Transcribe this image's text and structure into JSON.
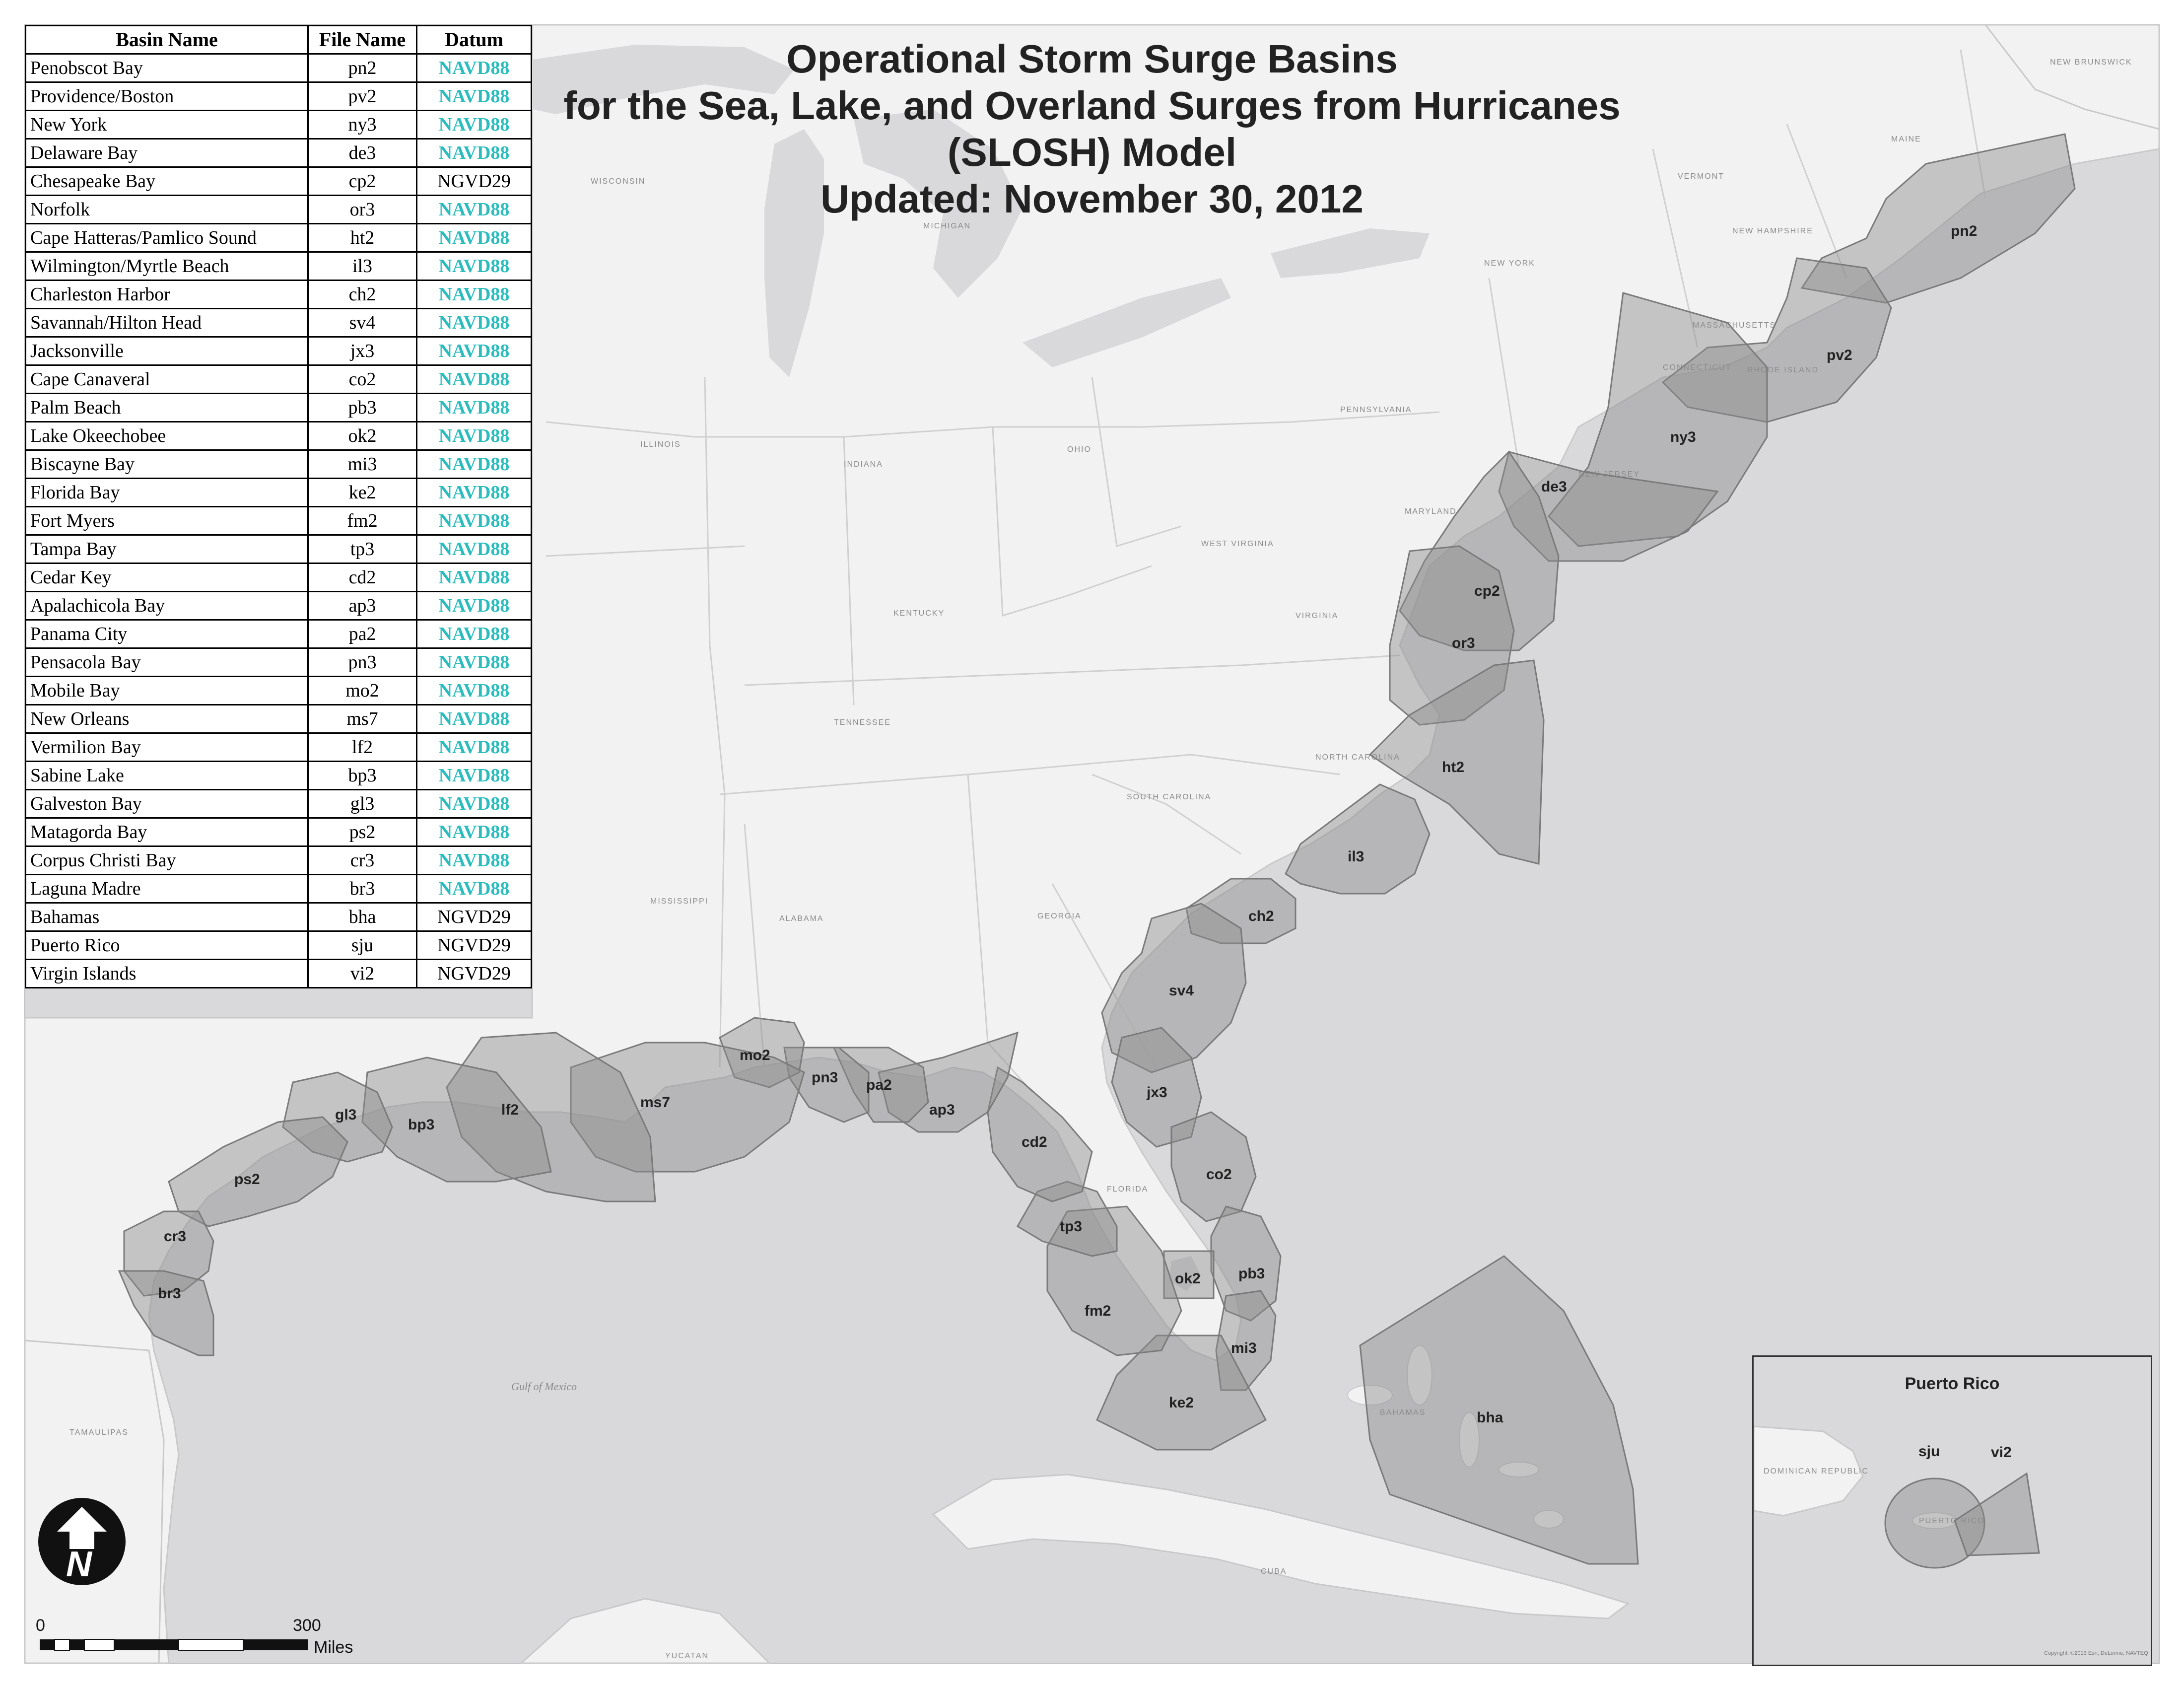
{
  "title": {
    "line1": "Operational Storm Surge Basins",
    "line2": "for the Sea, Lake, and Overland Surges from Hurricanes",
    "line3": "(SLOSH) Model",
    "line4": "Updated: November 30, 2012"
  },
  "legend": {
    "headers": [
      "Basin Name",
      "File Name",
      "Datum"
    ],
    "rows": [
      {
        "name": "Penobscot Bay",
        "file": "pn2",
        "datum": "NAVD88"
      },
      {
        "name": "Providence/Boston",
        "file": "pv2",
        "datum": "NAVD88"
      },
      {
        "name": "New York",
        "file": "ny3",
        "datum": "NAVD88"
      },
      {
        "name": "Delaware Bay",
        "file": "de3",
        "datum": "NAVD88"
      },
      {
        "name": "Chesapeake Bay",
        "file": "cp2",
        "datum": "NGVD29"
      },
      {
        "name": "Norfolk",
        "file": "or3",
        "datum": "NAVD88"
      },
      {
        "name": "Cape Hatteras/Pamlico Sound",
        "file": "ht2",
        "datum": "NAVD88"
      },
      {
        "name": "Wilmington/Myrtle Beach",
        "file": "il3",
        "datum": "NAVD88"
      },
      {
        "name": "Charleston Harbor",
        "file": "ch2",
        "datum": "NAVD88"
      },
      {
        "name": "Savannah/Hilton Head",
        "file": "sv4",
        "datum": "NAVD88"
      },
      {
        "name": "Jacksonville",
        "file": "jx3",
        "datum": "NAVD88"
      },
      {
        "name": "Cape Canaveral",
        "file": "co2",
        "datum": "NAVD88"
      },
      {
        "name": "Palm Beach",
        "file": "pb3",
        "datum": "NAVD88"
      },
      {
        "name": "Lake Okeechobee",
        "file": "ok2",
        "datum": "NAVD88"
      },
      {
        "name": "Biscayne Bay",
        "file": "mi3",
        "datum": "NAVD88"
      },
      {
        "name": "Florida Bay",
        "file": "ke2",
        "datum": "NAVD88"
      },
      {
        "name": "Fort Myers",
        "file": "fm2",
        "datum": "NAVD88"
      },
      {
        "name": "Tampa Bay",
        "file": "tp3",
        "datum": "NAVD88"
      },
      {
        "name": "Cedar Key",
        "file": "cd2",
        "datum": "NAVD88"
      },
      {
        "name": "Apalachicola Bay",
        "file": "ap3",
        "datum": "NAVD88"
      },
      {
        "name": "Panama City",
        "file": "pa2",
        "datum": "NAVD88"
      },
      {
        "name": "Pensacola Bay",
        "file": "pn3",
        "datum": "NAVD88"
      },
      {
        "name": "Mobile Bay",
        "file": "mo2",
        "datum": "NAVD88"
      },
      {
        "name": "New Orleans",
        "file": "ms7",
        "datum": "NAVD88"
      },
      {
        "name": "Vermilion Bay",
        "file": "lf2",
        "datum": "NAVD88"
      },
      {
        "name": "Sabine Lake",
        "file": "bp3",
        "datum": "NAVD88"
      },
      {
        "name": "Galveston Bay",
        "file": "gl3",
        "datum": "NAVD88"
      },
      {
        "name": "Matagorda Bay",
        "file": "ps2",
        "datum": "NAVD88"
      },
      {
        "name": "Corpus Christi Bay",
        "file": "cr3",
        "datum": "NAVD88"
      },
      {
        "name": "Laguna Madre",
        "file": "br3",
        "datum": "NAVD88"
      },
      {
        "name": "Bahamas",
        "file": "bha",
        "datum": "NGVD29"
      },
      {
        "name": "Puerto Rico",
        "file": "sju",
        "datum": "NGVD29"
      },
      {
        "name": "Virgin Islands",
        "file": "vi2",
        "datum": "NGVD29"
      }
    ]
  },
  "colors": {
    "navd88_text": "#2bbdbd",
    "water": "#d9d9dc",
    "land": "#f2f2f2",
    "basin_fill": "#8c8c8c"
  },
  "basin_labels": {
    "pn2": "pn2",
    "pv2": "pv2",
    "ny3": "ny3",
    "de3": "de3",
    "cp2": "cp2",
    "or3": "or3",
    "ht2": "ht2",
    "il3": "il3",
    "ch2": "ch2",
    "sv4": "sv4",
    "jx3": "jx3",
    "co2": "co2",
    "pb3": "pb3",
    "ok2": "ok2",
    "mi3": "mi3",
    "ke2": "ke2",
    "fm2": "fm2",
    "tp3": "tp3",
    "cd2": "cd2",
    "ap3": "ap3",
    "pa2": "pa2",
    "pn3": "pn3",
    "mo2": "mo2",
    "ms7": "ms7",
    "lf2": "lf2",
    "bp3": "bp3",
    "gl3": "gl3",
    "ps2": "ps2",
    "cr3": "cr3",
    "br3": "br3",
    "bha": "bha",
    "sju": "sju",
    "vi2": "vi2"
  },
  "place_labels": {
    "wisconsin": "WISCONSIN",
    "michigan": "MICHIGAN",
    "illinois": "ILLINOIS",
    "indiana": "INDIANA",
    "ohio": "OHIO",
    "pennsylvania": "PENNSYLVANIA",
    "new_york": "NEW YORK",
    "vermont": "VERMONT",
    "new_hampshire": "NEW HAMPSHIRE",
    "maine": "MAINE",
    "massachusetts": "MASSACHUSETTS",
    "connecticut": "CONNECTICUT",
    "rhode_island": "RHODE ISLAND",
    "new_jersey": "NEW JERSEY",
    "maryland": "MARYLAND",
    "west_virginia": "WEST VIRGINIA",
    "virginia": "VIRGINIA",
    "kentucky": "KENTUCKY",
    "tennessee": "TENNESSEE",
    "north_carolina": "NORTH CAROLINA",
    "south_carolina": "SOUTH CAROLINA",
    "georgia": "GEORGIA",
    "alabama": "ALABAMA",
    "mississippi": "MISSISSIPPI",
    "florida": "FLORIDA",
    "tamaulipas": "TAMAULIPAS",
    "yucatan": "YUCATAN",
    "cuba": "CUBA",
    "bahamas": "BAHAMAS",
    "new_brunswick": "NEW BRUNSWICK",
    "dominican_republic": "DOMINICAN REPUBLIC",
    "puerto_rico": "PUERTO RICO"
  },
  "water_labels": {
    "gulf_of_mexico": "Gulf of Mexico"
  },
  "inset": {
    "title": "Puerto Rico",
    "sju_label": "sju",
    "vi2_label": "vi2"
  },
  "scale": {
    "zero": "0",
    "max": "300",
    "unit": "Miles"
  },
  "north_arrow": {
    "letter": "N"
  },
  "copyright": "Copyright: ©2013 Esri, DeLorme, NAVTEQ"
}
